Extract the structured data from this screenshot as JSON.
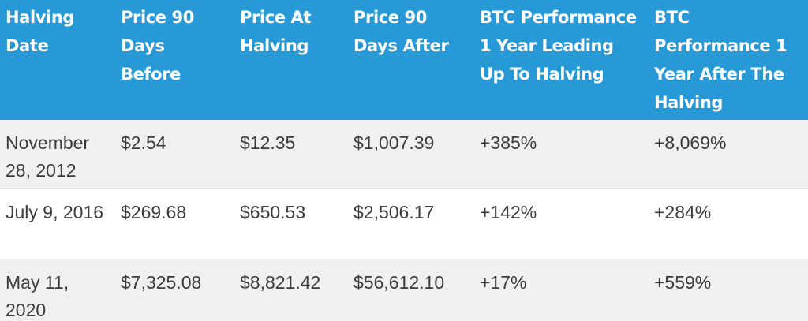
{
  "table": {
    "headers": [
      "Halving Date",
      "Price 90 Days Before",
      "Price At Halving",
      "Price 90 Days After",
      "BTC Performance 1 Year Leading Up To Halving",
      "BTC Performance 1 Year After The Halving"
    ],
    "rows": [
      [
        "November 28, 2012",
        "$2.54",
        "$12.35",
        "$1,007.39",
        "+385%",
        "+8,069%"
      ],
      [
        "July 9, 2016",
        "$269.68",
        "$650.53",
        "$2,506.17",
        "+142%",
        "+284%"
      ],
      [
        "May 11, 2020",
        "$7,325.08",
        "$8,821.42",
        "$56,612.10",
        "+17%",
        "+559%"
      ]
    ]
  },
  "colors": {
    "header_background": "#2799d6",
    "header_text": "#ffffff",
    "row_shaded": "#f0f0f0",
    "row_plain": "#ffffff",
    "cell_text": "#3b3b3b"
  }
}
